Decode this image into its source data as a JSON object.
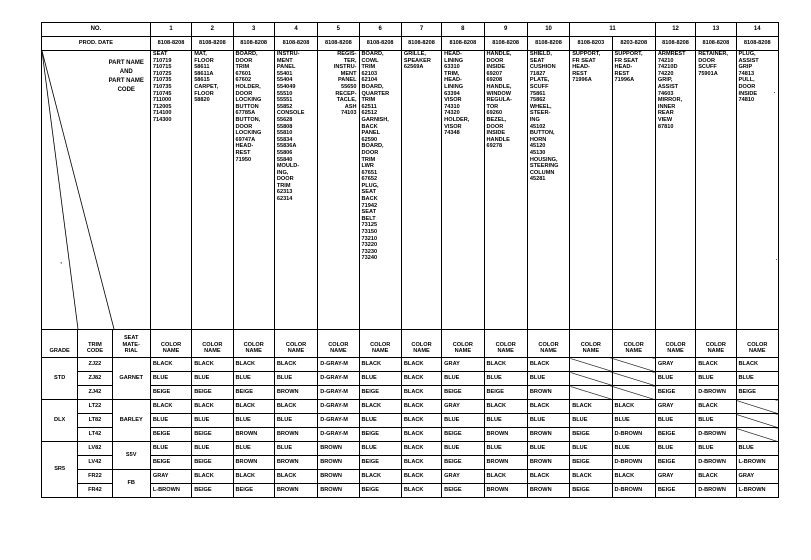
{
  "header": {
    "no_label": "NO.",
    "prod_date_label": "PROD. DATE",
    "col_nums": [
      "1",
      "2",
      "3",
      "4",
      "5",
      "6",
      "7",
      "8",
      "9",
      "10",
      "11",
      "12",
      "13",
      "14"
    ],
    "prod_dates": [
      "8108-8208",
      "8108-8208",
      "8108-8208",
      "8108-8208",
      "8108-8208",
      "8108-8208",
      "8108-8208",
      "8108-8208",
      "8108-8208",
      "8108-8208",
      "8108-8203",
      "8203-8208",
      "8108-8208",
      "8108-8208",
      "8108-8208"
    ],
    "part_name_and": "PART NAME\nAND\nPART NAME\nCODE"
  },
  "parts": [
    "SEAT\n710719\n710715\n710725\n710735\n710735\n710745\n711000\n712005\n714100\n714300",
    "MAT,\nFLOOR\n58611\n58611A\n58615\nCARPET,\nFLOOR\n58820",
    "BOARD,\nDOOR\nTRIM\n67601\n67602\nHOLDER,\nDOOR\nLOCKING\nBUTTON\n67785A\nBUTTON,\nDOOR\nLOCKING\n69747A\nHEAD-\nREST\n71950",
    "INSTRU-\nMENT\nPANEL\n55401\n55404\n554049\n55510\n55551\n55852\nCONSOLE\n55628\n55808\n55810\n55834\n55836A\n55806\n55840\nMOULD-\nING,\nDOOR\nTRIM\n62313\n62314",
    "REGIS-\nTER,\nINSTRU-\nMENT\nPANEL\n55650\nRECEP-\nTACLE,\nASH\n74103",
    "BOARD,\nCOWL\nTRIM\n62103\n62104\nBOARD,\nQUARTER\nTRIM\n62511\n62512\nGARNISH,\nBACK\nPANEL\n62590\nBOARD,\nDOOR\nTRIM\nLWR\n67651\n67652\nPLUG,\nSEAT\nBACK\n71942\nSEAT\nBELT\n73125\n73150\n73210\n73220\n73230\n73240",
    "GRILLE,\nSPEAKER\n62569A",
    "HEAD-\nLINING\n63310\nTRIM,\nHEAD-\nLINING\n63394\nVISOR\n74310\n74320\nHOLDER,\nVISOR\n74348",
    "HANDLE,\nDOOR\nINSIDE\n69207\n69208\nHANDLE,\nWINDOW\nREGULA-\nTOR\n69260\nBEZEL,\nDOOR\nINSIDE\nHANDLE\n69278",
    "SHIELD,\nSEAT\nCUSHION\n71827\nPLATE,\nSCUFF\n75861\n75862\nWHEEL,\nSTEER-\nING\n45102\nBUTTON,\nHORN\n45120\n45130\nHOUSING,\nSTEERING\nCOLUMN\n45281",
    "SUPPORT,\nFR SEAT\nHEAD-\nREST\n71996A",
    "SUPPORT,\nFR SEAT\nHEAD-\nREST\n71996A",
    "ARMREST\n74210\n74210D\n74220\nGRIP,\nASSIST\n74603\nMIRROR,\nINNER\nREAR\nVIEW\n87810",
    "RETAINER,\nDOOR\nSCUFF\n75901A",
    "PLUG,\nASSIST\nGRIP\n74813\nPULL,\nDOOR\nINSIDE\n74810"
  ],
  "color_header": {
    "grade": "GRADE",
    "trim_code": "TRIM\nCODE",
    "seat_material": "SEAT\nMATE-\nRIAL",
    "color_name": "COLOR\nNAME"
  },
  "rows": [
    {
      "grade": "STD",
      "trim": "ZJ22",
      "material": "GARNET",
      "cells": [
        "BLACK",
        "BLACK",
        "BLACK",
        "BLACK",
        "D-GRAY-M",
        "BLACK",
        "BLACK",
        "GRAY",
        "BLACK",
        "BLACK",
        "",
        "",
        "GRAY",
        "BLACK",
        "BLACK"
      ]
    },
    {
      "grade": "",
      "trim": "ZJ82",
      "material": "",
      "cells": [
        "BLUE",
        "BLUE",
        "BLUE",
        "BLUE",
        "D-GRAY-M",
        "BLUE",
        "BLACK",
        "BLUE",
        "BLUE",
        "BLUE",
        "",
        "",
        "BLUE",
        "BLUE",
        "BLUE"
      ]
    },
    {
      "grade": "",
      "trim": "ZJ42",
      "material": "",
      "cells": [
        "BEIGE",
        "BEIGE",
        "BEIGE",
        "BROWN",
        "D-GRAY-M",
        "BEIGE",
        "BLACK",
        "BEIGE",
        "BEIGE",
        "BROWN",
        "",
        "",
        "BEIGE",
        "D-BROWN",
        "BEIGE"
      ]
    },
    {
      "grade": "DLX",
      "trim": "LT22",
      "material": "BARLEY",
      "cells": [
        "BLACK",
        "BLACK",
        "BLACK",
        "BLACK",
        "D-GRAY-M",
        "BLACK",
        "BLACK",
        "GRAY",
        "BLACK",
        "BLACK",
        "BLACK",
        "BLACK",
        "GRAY",
        "BLACK",
        ""
      ]
    },
    {
      "grade": "",
      "trim": "LT82",
      "material": "",
      "cells": [
        "BLUE",
        "BLUE",
        "BLUE",
        "BLUE",
        "D-GRAY-M",
        "BLUE",
        "BLACK",
        "BLUE",
        "BLUE",
        "BLUE",
        "BLUE",
        "BLUE",
        "BLUE",
        "BLUE",
        ""
      ]
    },
    {
      "grade": "",
      "trim": "LT42",
      "material": "",
      "cells": [
        "BEIGE",
        "BEIGE",
        "BROWN",
        "BROWN",
        "D-GRAY-M",
        "BEIGE",
        "BLACK",
        "BEIGE",
        "BROWN",
        "BROWN",
        "BEIGE",
        "D-BROWN",
        "BEIGE",
        "D-BROWN",
        ""
      ]
    },
    {
      "grade": "SR5",
      "trim": "LV82",
      "material": "S5V",
      "cells": [
        "BLUE",
        "BLUE",
        "BLUE",
        "BLUE",
        "BROWN",
        "BLUE",
        "BLACK",
        "BLUE",
        "BLUE",
        "BLUE",
        "BLUE",
        "BLUE",
        "BLUE",
        "BLUE",
        "BLUE"
      ]
    },
    {
      "grade": "",
      "trim": "LV42",
      "material": "",
      "cells": [
        "BEIGE",
        "BEIGE",
        "BROWN",
        "BROWN",
        "BROWN",
        "BEIGE",
        "BLACK",
        "BEIGE",
        "BROWN",
        "BROWN",
        "BEIGE",
        "D-BROWN",
        "BEIGE",
        "D-BROWN",
        "L-BROWN"
      ]
    },
    {
      "grade": "",
      "trim": "FR22",
      "material": "FB",
      "cells": [
        "GRAY",
        "BLACK",
        "BLACK",
        "BLACK",
        "BROWN",
        "BLACK",
        "BLACK",
        "GRAY",
        "BLACK",
        "BLACK",
        "BLACK",
        "BLACK",
        "GRAY",
        "BLACK",
        "GRAY"
      ]
    },
    {
      "grade": "",
      "trim": "FR42",
      "material": "",
      "cells": [
        "L-BROWN",
        "BEIGE",
        "BEIGE",
        "BROWN",
        "BROWN",
        "BEIGE",
        "BLACK",
        "BEIGE",
        "BROWN",
        "BROWN",
        "BEIGE",
        "D-BROWN",
        "BEIGE",
        "D-BROWN",
        "L-BROWN"
      ]
    }
  ]
}
